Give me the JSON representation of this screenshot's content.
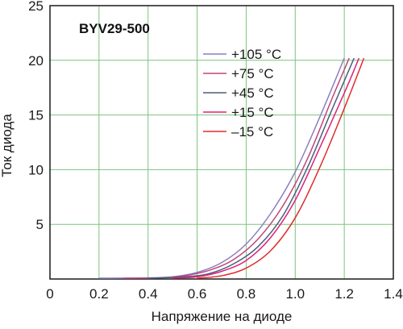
{
  "chart_data": {
    "type": "line",
    "title": "BYV29-500",
    "xlabel": "Напряжение на диоде",
    "ylabel": "Ток диода",
    "xlim": [
      0,
      1.4
    ],
    "ylim": [
      0,
      25
    ],
    "x_ticks": [
      "0",
      "0.2",
      "0.4",
      "0.6",
      "0.8",
      "1.0",
      "1.2",
      "1.4"
    ],
    "y_ticks": [
      "5",
      "10",
      "15",
      "20",
      "25"
    ],
    "grid": true,
    "legend_position": "top-right",
    "series": [
      {
        "name": "+105 °C",
        "color": "#8a7fc0",
        "x": [
          0.2,
          0.4,
          0.5,
          0.6,
          0.7,
          0.8,
          0.9,
          1.0,
          1.1,
          1.2
        ],
        "y": [
          0.0,
          0.1,
          0.2,
          0.6,
          1.5,
          3.2,
          6.0,
          9.8,
          14.8,
          20.2
        ]
      },
      {
        "name": "+75 °C",
        "color": "#c0467a",
        "x": [
          0.3,
          0.45,
          0.55,
          0.65,
          0.75,
          0.85,
          0.95,
          1.05,
          1.15,
          1.22
        ],
        "y": [
          0.0,
          0.1,
          0.3,
          0.8,
          1.8,
          3.7,
          6.7,
          11.0,
          16.5,
          20.2
        ]
      },
      {
        "name": "+45 °C",
        "color": "#4a5f80",
        "x": [
          0.4,
          0.55,
          0.65,
          0.75,
          0.85,
          0.95,
          1.05,
          1.15,
          1.24
        ],
        "y": [
          0.0,
          0.2,
          0.5,
          1.4,
          3.0,
          5.8,
          10.2,
          15.5,
          20.2
        ]
      },
      {
        "name": "+15 °C",
        "color": "#e0207a",
        "x": [
          0.5,
          0.6,
          0.7,
          0.8,
          0.9,
          1.0,
          1.1,
          1.2,
          1.26
        ],
        "y": [
          0.0,
          0.2,
          0.7,
          1.7,
          3.8,
          7.2,
          12.0,
          17.0,
          20.2
        ]
      },
      {
        "name": "–15 °C",
        "color": "#e02b2b",
        "x": [
          0.6,
          0.7,
          0.8,
          0.9,
          1.0,
          1.1,
          1.2,
          1.28
        ],
        "y": [
          0.0,
          0.3,
          1.0,
          2.6,
          5.6,
          10.2,
          15.6,
          20.2
        ]
      }
    ]
  }
}
